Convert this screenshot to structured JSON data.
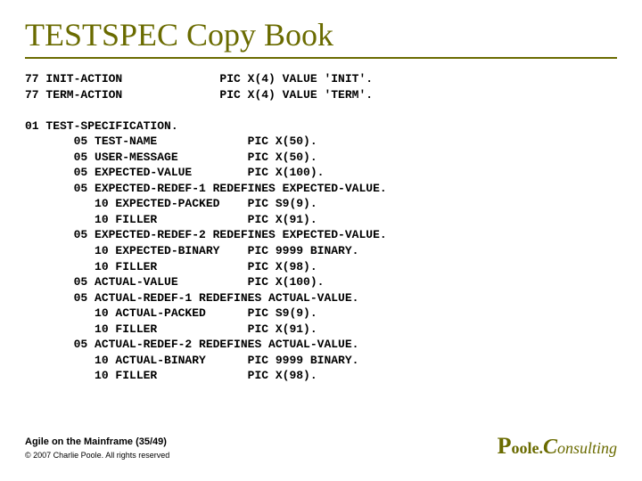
{
  "colors": {
    "accent": "#6a6b00",
    "text": "#000000",
    "background": "#ffffff"
  },
  "typography": {
    "title_family": "Times New Roman",
    "title_size_pt": 36,
    "code_family": "Courier New",
    "code_size_pt": 13,
    "code_weight": "bold",
    "footer_family": "Arial",
    "footer_size_pt": 11,
    "copyright_size_pt": 9,
    "brand_family": "Times New Roman"
  },
  "title": "TESTSPEC Copy Book",
  "code_block": "77 INIT-ACTION              PIC X(4) VALUE 'INIT'.\n77 TERM-ACTION              PIC X(4) VALUE 'TERM'.\n\n01 TEST-SPECIFICATION.\n       05 TEST-NAME             PIC X(50).\n       05 USER-MESSAGE          PIC X(50).\n       05 EXPECTED-VALUE        PIC X(100).\n       05 EXPECTED-REDEF-1 REDEFINES EXPECTED-VALUE.\n          10 EXPECTED-PACKED    PIC S9(9).\n          10 FILLER             PIC X(91).\n       05 EXPECTED-REDEF-2 REDEFINES EXPECTED-VALUE.\n          10 EXPECTED-BINARY    PIC 9999 BINARY.\n          10 FILLER             PIC X(98).\n       05 ACTUAL-VALUE          PIC X(100).\n       05 ACTUAL-REDEF-1 REDEFINES ACTUAL-VALUE.\n          10 ACTUAL-PACKED      PIC S9(9).\n          10 FILLER             PIC X(91).\n       05 ACTUAL-REDEF-2 REDEFINES ACTUAL-VALUE.\n          10 ACTUAL-BINARY      PIC 9999 BINARY.\n          10 FILLER             PIC X(98).",
  "footer": {
    "line": "Agile on the Mainframe (35/49)",
    "copyright": "© 2007 Charlie Poole. All rights reserved"
  },
  "brand": {
    "initial1": "P",
    "word1": "oole.",
    "initial2": "C",
    "word2": "onsulting"
  }
}
